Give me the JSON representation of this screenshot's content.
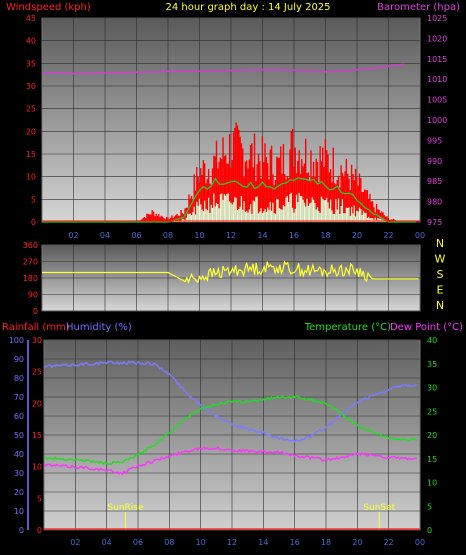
{
  "page": {
    "title": "24 hour graph day : 14 July 2025"
  },
  "colors": {
    "background": "#000000",
    "plot_bg_top": "#5a5a5a",
    "plot_bg_bottom": "#d8d8d8",
    "windspeed": "#ff0000",
    "gust": "#ff0000",
    "wind_avg": "#22cc22",
    "wind_light": "#d8ffd8",
    "barometer": "#d040d0",
    "direction": "#ffff33",
    "rainfall": "#ff3333",
    "humidity": "#7b7bff",
    "temperature": "#22dd22",
    "dewpoint": "#ff33ff",
    "sun_marker": "#ffff33",
    "grid": "#2a2a2a",
    "axis_text_red": "#ff2020",
    "axis_text_purple": "#e040e0",
    "axis_text_blue": "#7070ff",
    "axis_text_green": "#22dd22"
  },
  "chart_data": [
    {
      "type": "bar",
      "name": "wind-barometer",
      "title": "24 hour graph day : 14 July 2025",
      "left_axis_label": "Windspeed (kph)",
      "right_axis_label": "Barometer (hpa)",
      "ylim_left": [
        0,
        45
      ],
      "left_ticks": [
        "0",
        "5",
        "10",
        "15",
        "20",
        "25",
        "30",
        "35",
        "40",
        "45"
      ],
      "ylim_right": [
        975,
        1025
      ],
      "right_ticks": [
        "975",
        "980",
        "985",
        "990",
        "995",
        "1000",
        "1005",
        "1010",
        "1015",
        "1020",
        "1025"
      ],
      "x_ticks": [
        "02",
        "04",
        "06",
        "08",
        "10",
        "12",
        "14",
        "16",
        "18",
        "20",
        "22",
        "00"
      ],
      "grid": true,
      "windspeed_hourly_max": [
        0,
        0,
        0,
        0,
        0,
        0,
        0,
        3,
        1,
        3,
        15,
        18,
        23,
        21,
        19,
        17,
        23,
        20,
        19,
        16,
        12,
        5,
        1,
        0
      ],
      "wind_avg_hourly": [
        0,
        0,
        0,
        0,
        0,
        0,
        0,
        0,
        0,
        1,
        7,
        9,
        9,
        8,
        8,
        8,
        9,
        9,
        8,
        7,
        5,
        2,
        0,
        0
      ],
      "barometer_hourly": [
        1011.6,
        1011.5,
        1011.4,
        1011.4,
        1011.5,
        1011.6,
        1011.7,
        1011.8,
        1011.9,
        1012.0,
        1012.0,
        1012.1,
        1012.1,
        1012.2,
        1012.3,
        1012.3,
        1012.2,
        1011.9,
        1011.8,
        1012.0,
        1012.3,
        1012.6,
        1013.2,
        1013.7
      ]
    },
    {
      "type": "scatter",
      "name": "wind-direction",
      "left_ticks": [
        "0",
        "90",
        "180",
        "270",
        "360"
      ],
      "ylim": [
        0,
        360
      ],
      "compass_labels": [
        "N",
        "W",
        "S",
        "E",
        "N"
      ],
      "direction_hourly": [
        210,
        210,
        210,
        210,
        210,
        210,
        210,
        210,
        210,
        165,
        185,
        205,
        220,
        230,
        235,
        240,
        230,
        220,
        215,
        225,
        220,
        175,
        175,
        175
      ]
    },
    {
      "type": "line",
      "name": "rain-humidity-temperature",
      "left_axis_label_rain": "Rainfall (mm)",
      "left_axis_label_humidity": "Humidity (%)",
      "right_axis_label_temperature": "Temperature (°C)",
      "right_axis_label_dewpoint": "Dew Point (°C)",
      "ylim_humidity": [
        0,
        100
      ],
      "humidity_ticks": [
        "0",
        "10",
        "20",
        "30",
        "40",
        "50",
        "60",
        "70",
        "80",
        "90",
        "100"
      ],
      "ylim_rain": [
        0,
        30
      ],
      "rain_ticks": [
        "0",
        "5",
        "10",
        "15",
        "20",
        "25",
        "30"
      ],
      "ylim_temperature": [
        0,
        40
      ],
      "temperature_ticks": [
        "0",
        "5",
        "10",
        "15",
        "20",
        "25",
        "30",
        "35",
        "40"
      ],
      "x_ticks": [
        "02",
        "04",
        "06",
        "08",
        "10",
        "12",
        "14",
        "16",
        "18",
        "20",
        "22",
        "00"
      ],
      "grid": true,
      "humidity_hourly": [
        86,
        86.5,
        87,
        87.5,
        88,
        88,
        88,
        87.5,
        82,
        73,
        66,
        60,
        56,
        53,
        51,
        48,
        47,
        49,
        54,
        61,
        67,
        71,
        74,
        76
      ],
      "temperature_hourly": [
        15.2,
        15.0,
        14.8,
        14.5,
        14.0,
        14.3,
        15.8,
        17.8,
        20.5,
        23.5,
        25.5,
        26.5,
        27,
        27,
        27.5,
        28.0,
        28.0,
        27.5,
        26.5,
        24.5,
        22.0,
        20.5,
        19.5,
        19.0
      ],
      "dewpoint_hourly": [
        13.7,
        13.5,
        13.3,
        13.0,
        12.5,
        12.0,
        13.5,
        14.5,
        15.5,
        16.5,
        17.3,
        17.2,
        16.8,
        16.6,
        16.4,
        16.3,
        15.8,
        15.2,
        14.8,
        15.2,
        16.0,
        15.8,
        15.3,
        15.0
      ],
      "rainfall_hourly": [
        0,
        0,
        0,
        0,
        0,
        0,
        0,
        0,
        0,
        0,
        0,
        0,
        0,
        0,
        0,
        0,
        0,
        0,
        0,
        0,
        0,
        0,
        0,
        0
      ],
      "sunrise_label": "SunRise",
      "sunrise_hour": 5.2,
      "sunset_label": "SunSet",
      "sunset_hour": 21.4
    }
  ]
}
